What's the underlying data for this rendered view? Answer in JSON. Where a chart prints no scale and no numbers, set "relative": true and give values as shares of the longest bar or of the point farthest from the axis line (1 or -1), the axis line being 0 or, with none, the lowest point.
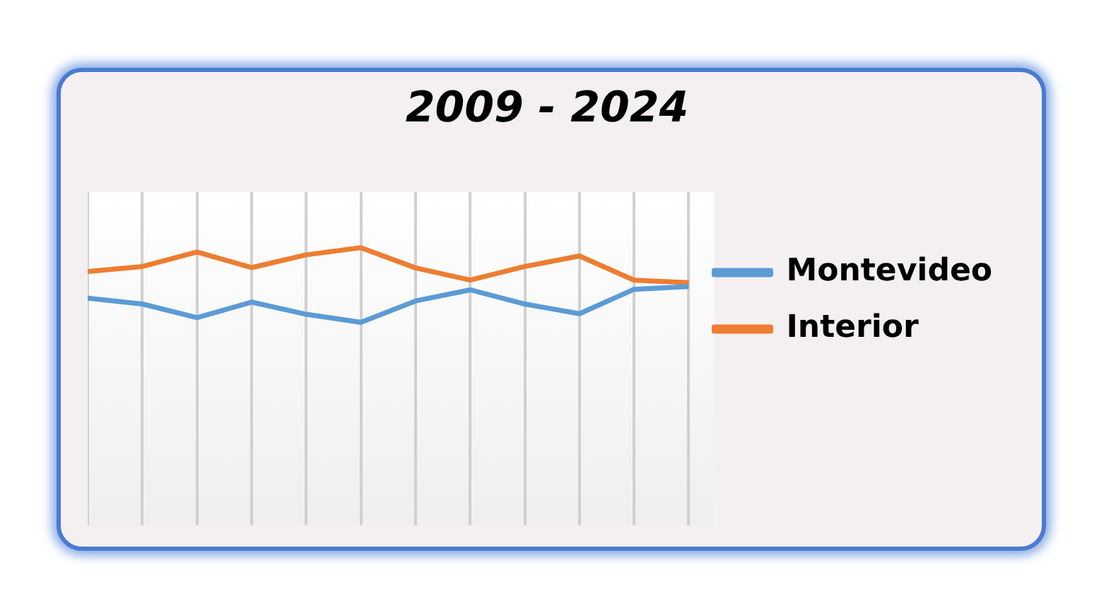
{
  "chart_data": {
    "type": "line",
    "title": "2009 - 2024",
    "relative": true,
    "categories": [
      null,
      null,
      null,
      null,
      null,
      null,
      null,
      null,
      null,
      null,
      null,
      null
    ],
    "series": [
      {
        "name": "Montevideo",
        "color": "#5b9bd5",
        "values": [
          0.818,
          0.797,
          0.748,
          0.804,
          0.76,
          0.731,
          0.808,
          0.848,
          0.797,
          0.762,
          0.85,
          0.86
        ]
      },
      {
        "name": "Interior",
        "color": "#ed7d31",
        "values": [
          0.914,
          0.932,
          0.984,
          0.928,
          0.974,
          1,
          0.927,
          0.883,
          0.932,
          0.97,
          0.883,
          0.874
        ]
      }
    ],
    "grid": "x",
    "legend": "right",
    "marker": "none",
    "line_style": "solid"
  }
}
